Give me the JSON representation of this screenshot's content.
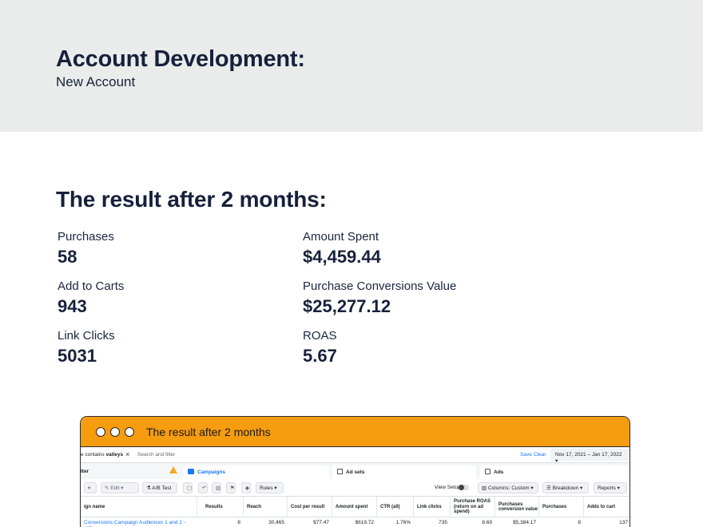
{
  "header": {
    "title": "Account Development:",
    "subtitle": "New Account"
  },
  "results": {
    "title": "The result after 2 months:",
    "metrics": [
      {
        "label": "Purchases",
        "value": "58"
      },
      {
        "label": "Amount Spent",
        "value": "$4,459.44"
      },
      {
        "label": "Add to Carts",
        "value": "943"
      },
      {
        "label": "Purchase Conversions Value",
        "value": "$25,277.12"
      },
      {
        "label": "Link Clicks",
        "value": "5031"
      },
      {
        "label": "ROAS",
        "value": "5.67"
      }
    ]
  },
  "window": {
    "title": "The result after 2 months",
    "accent": "#f59c0f",
    "filter": {
      "chip_prefix": "e contains ",
      "chip_value": "valleys",
      "search_placeholder": "Search and filter",
      "save": "Save",
      "clear": "Clear",
      "date_range": "Nov 17, 2021 – Jan 17, 2022"
    },
    "tabs": {
      "filter_label": "lter",
      "campaigns": "Campaigns",
      "adsets": "Ad sets",
      "ads": "Ads"
    },
    "toolbar": {
      "edit": "Edit",
      "ab_test": "A/B Test",
      "rules": "Rules",
      "view_setup": "View Setup",
      "columns": "Columns: Custom",
      "breakdown": "Breakdown",
      "reports": "Reports"
    },
    "table": {
      "columns": [
        "ign name",
        "Results",
        "Reach",
        "Cost per result",
        "Amount spent",
        "CTR (all)",
        "Link clicks",
        "Purchase ROAS (return on ad spend)",
        "Purchases conversion value",
        "Purchases",
        "Adds to cart"
      ],
      "rows": [
        [
          "Conversions Campaign Audiences 1 and 2 - vall...",
          "8",
          "30,465",
          "$77.47",
          "$619.72",
          "1.76%",
          "735",
          "8.69",
          "$5,384.17",
          "8",
          "137"
        ]
      ]
    }
  }
}
